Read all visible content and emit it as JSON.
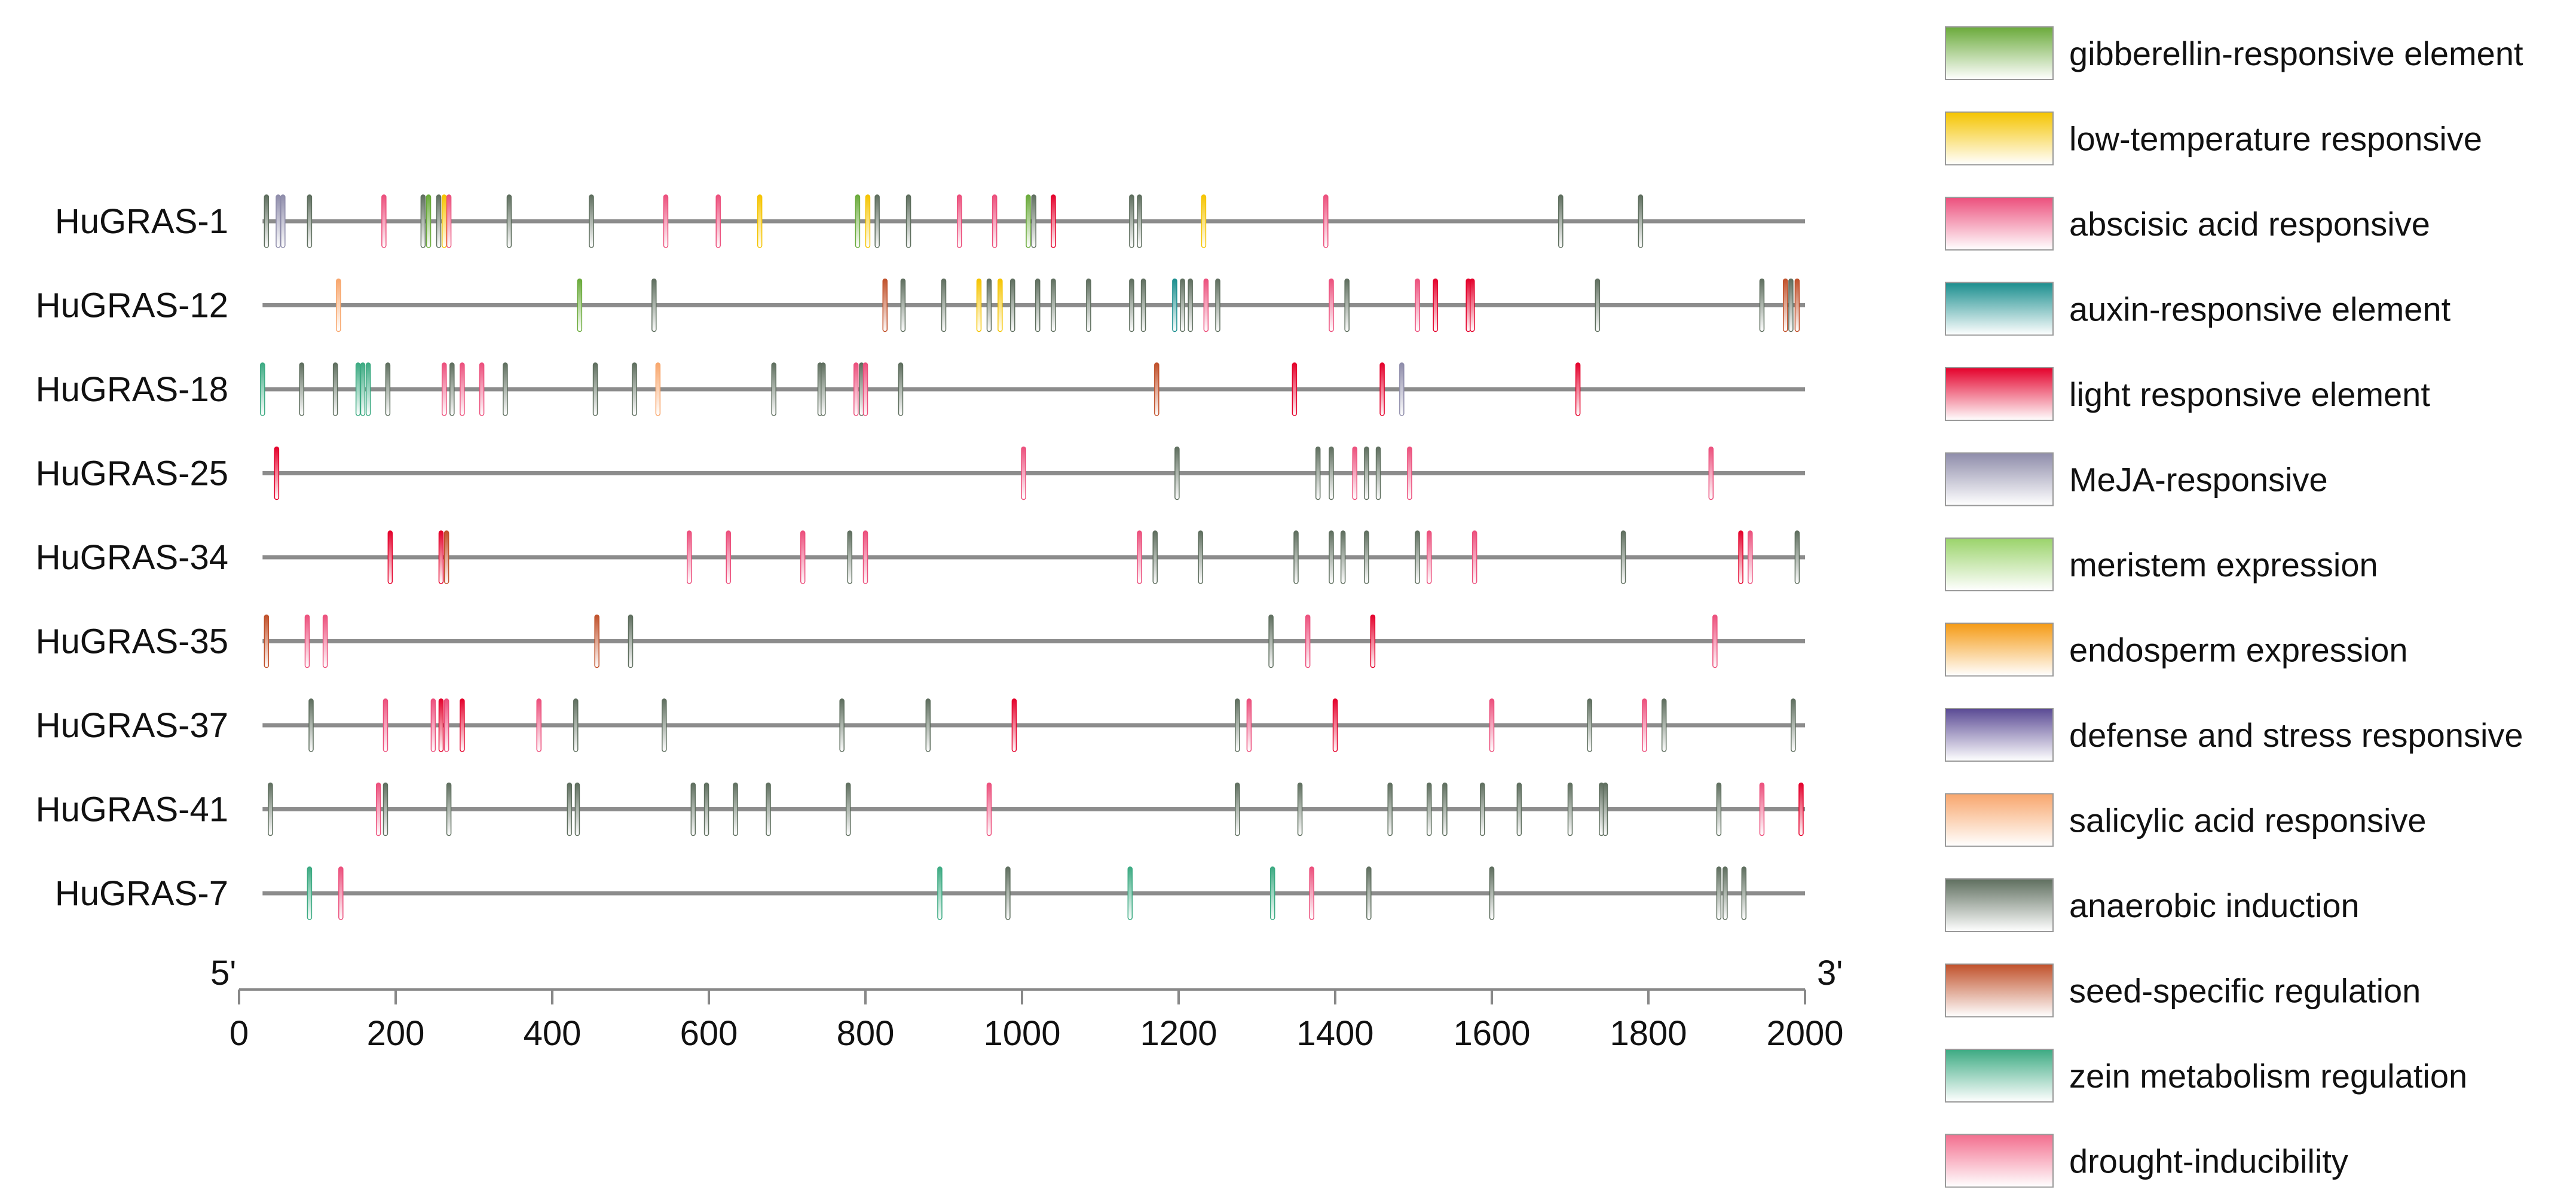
{
  "chart_data": {
    "type": "promoter-element-map",
    "xlim": [
      0,
      2000
    ],
    "x_ticks": [
      0,
      200,
      400,
      600,
      800,
      1000,
      1200,
      1400,
      1600,
      1800,
      2000
    ],
    "end_labels": {
      "left": "5'",
      "right": "3'"
    },
    "legend": [
      {
        "key": "gib",
        "label": "gibberellin-responsive element",
        "color": "#6aaa3a"
      },
      {
        "key": "low",
        "label": "low-temperature responsive",
        "color": "#f5c400"
      },
      {
        "key": "aba",
        "label": "abscisic acid responsive",
        "color": "#ec4f7c"
      },
      {
        "key": "aux",
        "label": "auxin-responsive element",
        "color": "#1a8e8e"
      },
      {
        "key": "lig",
        "label": "light responsive element",
        "color": "#e4002b"
      },
      {
        "key": "mej",
        "label": "MeJA-responsive",
        "color": "#8e8caa"
      },
      {
        "key": "mer",
        "label": "meristem expression",
        "color": "#9ad36a"
      },
      {
        "key": "end",
        "label": "endosperm expression",
        "color": "#f59a14"
      },
      {
        "key": "def",
        "label": "defense and stress responsive",
        "color": "#5a4a94"
      },
      {
        "key": "sal",
        "label": "salicylic acid responsive",
        "color": "#f8a66c"
      },
      {
        "key": "ana",
        "label": "anaerobic induction",
        "color": "#5e6e5e"
      },
      {
        "key": "seed",
        "label": "seed-specific regulation",
        "color": "#c0502a"
      },
      {
        "key": "zein",
        "label": "zein metabolism regulation",
        "color": "#3caa82"
      },
      {
        "key": "dro",
        "label": "drought-inducibility",
        "color": "#f36e8e"
      }
    ],
    "genes": [
      {
        "name": "HuGRAS-1",
        "elements": [
          {
            "x": 35,
            "t": "ana"
          },
          {
            "x": 50,
            "t": "mej"
          },
          {
            "x": 56,
            "t": "mej"
          },
          {
            "x": 90,
            "t": "ana"
          },
          {
            "x": 185,
            "t": "aba"
          },
          {
            "x": 235,
            "t": "ana"
          },
          {
            "x": 242,
            "t": "gib"
          },
          {
            "x": 255,
            "t": "ana"
          },
          {
            "x": 262,
            "t": "low"
          },
          {
            "x": 268,
            "t": "aba"
          },
          {
            "x": 345,
            "t": "ana"
          },
          {
            "x": 450,
            "t": "ana"
          },
          {
            "x": 545,
            "t": "aba"
          },
          {
            "x": 612,
            "t": "aba"
          },
          {
            "x": 665,
            "t": "low"
          },
          {
            "x": 790,
            "t": "gib"
          },
          {
            "x": 803,
            "t": "low"
          },
          {
            "x": 815,
            "t": "ana"
          },
          {
            "x": 855,
            "t": "ana"
          },
          {
            "x": 920,
            "t": "aba"
          },
          {
            "x": 965,
            "t": "aba"
          },
          {
            "x": 1008,
            "t": "gib"
          },
          {
            "x": 1015,
            "t": "ana"
          },
          {
            "x": 1040,
            "t": "lig"
          },
          {
            "x": 1140,
            "t": "ana"
          },
          {
            "x": 1150,
            "t": "ana"
          },
          {
            "x": 1232,
            "t": "low"
          },
          {
            "x": 1388,
            "t": "aba"
          },
          {
            "x": 1688,
            "t": "ana"
          },
          {
            "x": 1790,
            "t": "ana"
          }
        ]
      },
      {
        "name": "HuGRAS-12",
        "elements": [
          {
            "x": 127,
            "t": "sal"
          },
          {
            "x": 435,
            "t": "gib"
          },
          {
            "x": 530,
            "t": "ana"
          },
          {
            "x": 825,
            "t": "seed"
          },
          {
            "x": 848,
            "t": "ana"
          },
          {
            "x": 900,
            "t": "ana"
          },
          {
            "x": 945,
            "t": "low"
          },
          {
            "x": 958,
            "t": "ana"
          },
          {
            "x": 972,
            "t": "low"
          },
          {
            "x": 988,
            "t": "ana"
          },
          {
            "x": 1020,
            "t": "ana"
          },
          {
            "x": 1040,
            "t": "ana"
          },
          {
            "x": 1085,
            "t": "ana"
          },
          {
            "x": 1140,
            "t": "ana"
          },
          {
            "x": 1155,
            "t": "ana"
          },
          {
            "x": 1195,
            "t": "aux"
          },
          {
            "x": 1205,
            "t": "ana"
          },
          {
            "x": 1215,
            "t": "ana"
          },
          {
            "x": 1235,
            "t": "aba"
          },
          {
            "x": 1250,
            "t": "ana"
          },
          {
            "x": 1395,
            "t": "aba"
          },
          {
            "x": 1415,
            "t": "ana"
          },
          {
            "x": 1505,
            "t": "aba"
          },
          {
            "x": 1528,
            "t": "lig"
          },
          {
            "x": 1570,
            "t": "lig"
          },
          {
            "x": 1575,
            "t": "lig"
          },
          {
            "x": 1735,
            "t": "ana"
          },
          {
            "x": 1945,
            "t": "ana"
          },
          {
            "x": 1975,
            "t": "seed"
          },
          {
            "x": 1982,
            "t": "ana"
          },
          {
            "x": 1990,
            "t": "seed"
          }
        ]
      },
      {
        "name": "HuGRAS-18",
        "elements": [
          {
            "x": 30,
            "t": "zein"
          },
          {
            "x": 80,
            "t": "ana"
          },
          {
            "x": 123,
            "t": "ana"
          },
          {
            "x": 152,
            "t": "zein"
          },
          {
            "x": 158,
            "t": "zein"
          },
          {
            "x": 165,
            "t": "zein"
          },
          {
            "x": 190,
            "t": "ana"
          },
          {
            "x": 262,
            "t": "aba"
          },
          {
            "x": 272,
            "t": "ana"
          },
          {
            "x": 285,
            "t": "aba"
          },
          {
            "x": 310,
            "t": "aba"
          },
          {
            "x": 340,
            "t": "ana"
          },
          {
            "x": 455,
            "t": "ana"
          },
          {
            "x": 505,
            "t": "ana"
          },
          {
            "x": 535,
            "t": "sal"
          },
          {
            "x": 683,
            "t": "ana"
          },
          {
            "x": 742,
            "t": "ana"
          },
          {
            "x": 746,
            "t": "ana"
          },
          {
            "x": 788,
            "t": "aba"
          },
          {
            "x": 795,
            "t": "ana"
          },
          {
            "x": 800,
            "t": "aba"
          },
          {
            "x": 845,
            "t": "ana"
          },
          {
            "x": 1172,
            "t": "seed"
          },
          {
            "x": 1348,
            "t": "lig"
          },
          {
            "x": 1460,
            "t": "lig"
          },
          {
            "x": 1485,
            "t": "mej"
          },
          {
            "x": 1710,
            "t": "lig"
          }
        ]
      },
      {
        "name": "HuGRAS-25",
        "elements": [
          {
            "x": 48,
            "t": "lig"
          },
          {
            "x": 1002,
            "t": "aba"
          },
          {
            "x": 1198,
            "t": "ana"
          },
          {
            "x": 1378,
            "t": "ana"
          },
          {
            "x": 1395,
            "t": "ana"
          },
          {
            "x": 1425,
            "t": "aba"
          },
          {
            "x": 1440,
            "t": "ana"
          },
          {
            "x": 1455,
            "t": "ana"
          },
          {
            "x": 1495,
            "t": "aba"
          },
          {
            "x": 1880,
            "t": "aba"
          }
        ]
      },
      {
        "name": "HuGRAS-34",
        "elements": [
          {
            "x": 193,
            "t": "lig"
          },
          {
            "x": 258,
            "t": "lig"
          },
          {
            "x": 265,
            "t": "seed"
          },
          {
            "x": 575,
            "t": "aba"
          },
          {
            "x": 625,
            "t": "aba"
          },
          {
            "x": 720,
            "t": "aba"
          },
          {
            "x": 780,
            "t": "ana"
          },
          {
            "x": 800,
            "t": "aba"
          },
          {
            "x": 1150,
            "t": "aba"
          },
          {
            "x": 1170,
            "t": "ana"
          },
          {
            "x": 1228,
            "t": "ana"
          },
          {
            "x": 1350,
            "t": "ana"
          },
          {
            "x": 1395,
            "t": "ana"
          },
          {
            "x": 1410,
            "t": "ana"
          },
          {
            "x": 1440,
            "t": "ana"
          },
          {
            "x": 1505,
            "t": "ana"
          },
          {
            "x": 1520,
            "t": "aba"
          },
          {
            "x": 1578,
            "t": "aba"
          },
          {
            "x": 1768,
            "t": "ana"
          },
          {
            "x": 1918,
            "t": "lig"
          },
          {
            "x": 1930,
            "t": "aba"
          },
          {
            "x": 1990,
            "t": "ana"
          }
        ]
      },
      {
        "name": "HuGRAS-35",
        "elements": [
          {
            "x": 35,
            "t": "seed"
          },
          {
            "x": 87,
            "t": "aba"
          },
          {
            "x": 110,
            "t": "aba"
          },
          {
            "x": 457,
            "t": "seed"
          },
          {
            "x": 500,
            "t": "ana"
          },
          {
            "x": 1318,
            "t": "ana"
          },
          {
            "x": 1365,
            "t": "aba"
          },
          {
            "x": 1448,
            "t": "lig"
          },
          {
            "x": 1885,
            "t": "aba"
          }
        ]
      },
      {
        "name": "HuGRAS-37",
        "elements": [
          {
            "x": 92,
            "t": "ana"
          },
          {
            "x": 187,
            "t": "aba"
          },
          {
            "x": 248,
            "t": "aba"
          },
          {
            "x": 258,
            "t": "lig"
          },
          {
            "x": 265,
            "t": "aba"
          },
          {
            "x": 285,
            "t": "lig"
          },
          {
            "x": 383,
            "t": "aba"
          },
          {
            "x": 430,
            "t": "ana"
          },
          {
            "x": 543,
            "t": "ana"
          },
          {
            "x": 770,
            "t": "ana"
          },
          {
            "x": 880,
            "t": "ana"
          },
          {
            "x": 990,
            "t": "lig"
          },
          {
            "x": 1275,
            "t": "ana"
          },
          {
            "x": 1290,
            "t": "aba"
          },
          {
            "x": 1400,
            "t": "lig"
          },
          {
            "x": 1600,
            "t": "aba"
          },
          {
            "x": 1725,
            "t": "ana"
          },
          {
            "x": 1795,
            "t": "aba"
          },
          {
            "x": 1820,
            "t": "ana"
          },
          {
            "x": 1985,
            "t": "ana"
          }
        ]
      },
      {
        "name": "HuGRAS-41",
        "elements": [
          {
            "x": 40,
            "t": "ana"
          },
          {
            "x": 178,
            "t": "aba"
          },
          {
            "x": 187,
            "t": "ana"
          },
          {
            "x": 268,
            "t": "ana"
          },
          {
            "x": 422,
            "t": "ana"
          },
          {
            "x": 432,
            "t": "ana"
          },
          {
            "x": 580,
            "t": "ana"
          },
          {
            "x": 597,
            "t": "ana"
          },
          {
            "x": 634,
            "t": "ana"
          },
          {
            "x": 676,
            "t": "ana"
          },
          {
            "x": 778,
            "t": "ana"
          },
          {
            "x": 958,
            "t": "aba"
          },
          {
            "x": 1275,
            "t": "ana"
          },
          {
            "x": 1355,
            "t": "ana"
          },
          {
            "x": 1470,
            "t": "ana"
          },
          {
            "x": 1520,
            "t": "ana"
          },
          {
            "x": 1540,
            "t": "ana"
          },
          {
            "x": 1588,
            "t": "ana"
          },
          {
            "x": 1635,
            "t": "ana"
          },
          {
            "x": 1700,
            "t": "ana"
          },
          {
            "x": 1740,
            "t": "ana"
          },
          {
            "x": 1745,
            "t": "ana"
          },
          {
            "x": 1890,
            "t": "ana"
          },
          {
            "x": 1945,
            "t": "aba"
          },
          {
            "x": 1995,
            "t": "lig"
          }
        ]
      },
      {
        "name": "HuGRAS-7",
        "elements": [
          {
            "x": 90,
            "t": "zein"
          },
          {
            "x": 130,
            "t": "aba"
          },
          {
            "x": 895,
            "t": "zein"
          },
          {
            "x": 982,
            "t": "ana"
          },
          {
            "x": 1138,
            "t": "zein"
          },
          {
            "x": 1320,
            "t": "zein"
          },
          {
            "x": 1370,
            "t": "aba"
          },
          {
            "x": 1443,
            "t": "ana"
          },
          {
            "x": 1600,
            "t": "ana"
          },
          {
            "x": 1890,
            "t": "ana"
          },
          {
            "x": 1898,
            "t": "ana"
          },
          {
            "x": 1922,
            "t": "ana"
          }
        ]
      }
    ]
  }
}
